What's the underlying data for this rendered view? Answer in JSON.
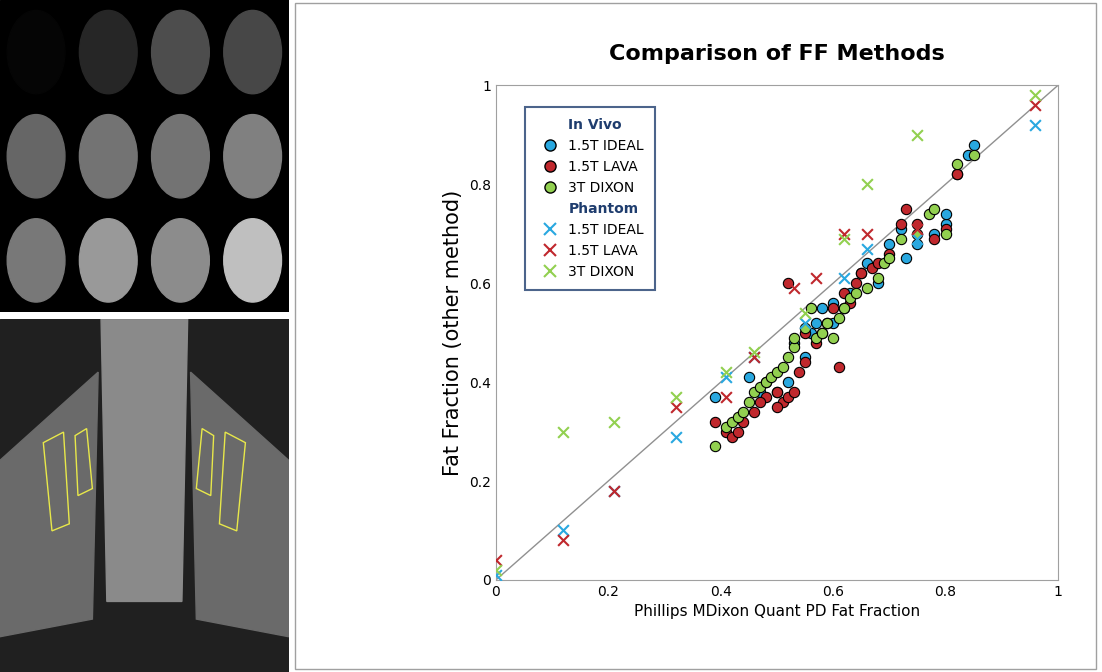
{
  "chart_data": {
    "type": "scatter",
    "title": "Comparison of FF Methods",
    "x_label": "Phillips MDixon Quant PD Fat Fraction",
    "y_label": "Fat Fraction (other method)",
    "xlim": [
      0,
      1
    ],
    "ylim": [
      0,
      1
    ],
    "xticks": [
      0,
      0.2,
      0.4,
      0.6,
      0.8,
      1
    ],
    "yticks": [
      0,
      0.2,
      0.4,
      0.6,
      0.8,
      1
    ],
    "grid": false,
    "legend": "upper left",
    "series": [
      {
        "group": "In Vivo",
        "name": "1.5T IDEAL",
        "color": "#29a8e0",
        "marker": "circle",
        "x": [
          0.39,
          0.45,
          0.48,
          0.5,
          0.52,
          0.55,
          0.57,
          0.58,
          0.6,
          0.62,
          0.65,
          0.68,
          0.7,
          0.73,
          0.75,
          0.78,
          0.8,
          0.82,
          0.85,
          0.6,
          0.63,
          0.56,
          0.53,
          0.47,
          0.66,
          0.72,
          0.8,
          0.84
        ],
        "values": [
          0.37,
          0.41,
          0.4,
          0.38,
          0.4,
          0.45,
          0.52,
          0.55,
          0.56,
          0.55,
          0.62,
          0.6,
          0.68,
          0.65,
          0.68,
          0.7,
          0.72,
          0.82,
          0.88,
          0.52,
          0.58,
          0.5,
          0.48,
          0.38,
          0.64,
          0.71,
          0.74,
          0.86
        ]
      },
      {
        "group": "In Vivo",
        "name": "1.5T LAVA",
        "color": "#c0282d",
        "marker": "circle",
        "x": [
          0.39,
          0.41,
          0.42,
          0.43,
          0.44,
          0.46,
          0.48,
          0.5,
          0.51,
          0.52,
          0.53,
          0.52,
          0.54,
          0.55,
          0.57,
          0.58,
          0.59,
          0.6,
          0.61,
          0.62,
          0.63,
          0.64,
          0.65,
          0.67,
          0.68,
          0.7,
          0.72,
          0.73,
          0.75,
          0.78,
          0.8,
          0.82,
          0.5,
          0.47,
          0.55
        ],
        "values": [
          0.32,
          0.3,
          0.29,
          0.3,
          0.32,
          0.34,
          0.37,
          0.38,
          0.36,
          0.37,
          0.38,
          0.6,
          0.42,
          0.44,
          0.48,
          0.5,
          0.52,
          0.55,
          0.43,
          0.58,
          0.56,
          0.6,
          0.62,
          0.63,
          0.64,
          0.66,
          0.72,
          0.75,
          0.72,
          0.69,
          0.71,
          0.82,
          0.35,
          0.36,
          0.5
        ]
      },
      {
        "group": "In Vivo",
        "name": "3T DIXON",
        "color": "#92d050",
        "marker": "circle",
        "x": [
          0.39,
          0.41,
          0.42,
          0.43,
          0.44,
          0.45,
          0.46,
          0.47,
          0.48,
          0.49,
          0.5,
          0.51,
          0.52,
          0.53,
          0.53,
          0.55,
          0.57,
          0.58,
          0.59,
          0.6,
          0.61,
          0.62,
          0.63,
          0.64,
          0.66,
          0.68,
          0.69,
          0.7,
          0.72,
          0.75,
          0.77,
          0.78,
          0.8,
          0.82,
          0.85,
          0.56
        ],
        "values": [
          0.27,
          0.31,
          0.32,
          0.33,
          0.34,
          0.36,
          0.38,
          0.39,
          0.4,
          0.41,
          0.42,
          0.43,
          0.45,
          0.47,
          0.49,
          0.51,
          0.49,
          0.5,
          0.52,
          0.49,
          0.53,
          0.55,
          0.57,
          0.58,
          0.59,
          0.61,
          0.64,
          0.65,
          0.69,
          0.7,
          0.74,
          0.75,
          0.7,
          0.84,
          0.86,
          0.55
        ]
      },
      {
        "group": "Phantom",
        "name": "1.5T IDEAL",
        "color": "#29a8e0",
        "marker": "x",
        "x": [
          0,
          0.12,
          0.21,
          0.32,
          0.41,
          0.46,
          0.55,
          0.62,
          0.66,
          0.75,
          0.96
        ],
        "values": [
          0.01,
          0.1,
          0.18,
          0.29,
          0.41,
          0.45,
          0.52,
          0.61,
          0.67,
          0.69,
          0.92
        ]
      },
      {
        "group": "Phantom",
        "name": "1.5T LAVA",
        "color": "#c0282d",
        "marker": "x",
        "x": [
          0,
          0.12,
          0.21,
          0.32,
          0.41,
          0.46,
          0.53,
          0.57,
          0.62,
          0.66,
          0.75,
          0.96
        ],
        "values": [
          0.04,
          0.08,
          0.18,
          0.35,
          0.37,
          0.45,
          0.59,
          0.61,
          0.7,
          0.7,
          0.71,
          0.96
        ]
      },
      {
        "group": "Phantom",
        "name": "3T DIXON",
        "color": "#92d050",
        "marker": "x",
        "x": [
          0,
          0.12,
          0.21,
          0.32,
          0.41,
          0.46,
          0.55,
          0.62,
          0.66,
          0.75,
          0.96
        ],
        "values": [
          0.02,
          0.3,
          0.32,
          0.37,
          0.42,
          0.46,
          0.54,
          0.69,
          0.8,
          0.9,
          0.98
        ]
      }
    ]
  }
}
